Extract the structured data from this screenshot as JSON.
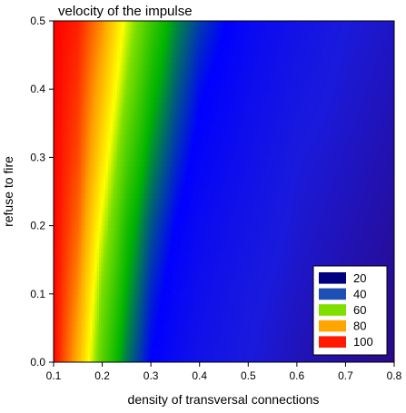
{
  "chart_data": {
    "type": "heatmap",
    "title": "velocity of the impulse",
    "xlabel": "density of transversal connections",
    "ylabel": "refuse to fire",
    "xlim": [
      0.1,
      0.8
    ],
    "ylim": [
      0.0,
      0.5
    ],
    "xticks": [
      "0.1",
      "0.2",
      "0.3",
      "0.4",
      "0.5",
      "0.6",
      "0.7",
      "0.8"
    ],
    "yticks": [
      "0.0",
      "0.1",
      "0.2",
      "0.3",
      "0.4",
      "0.5"
    ],
    "x": [
      0.1,
      0.15,
      0.2,
      0.25,
      0.3,
      0.35,
      0.4,
      0.5,
      0.6,
      0.7,
      0.8
    ],
    "y": [
      0.0,
      0.1,
      0.2,
      0.3,
      0.4,
      0.5
    ],
    "z": [
      [
        100,
        82,
        60,
        45,
        35,
        30,
        26,
        22,
        19,
        17,
        15
      ],
      [
        100,
        86,
        64,
        49,
        38,
        32,
        28,
        23,
        20,
        18,
        16
      ],
      [
        100,
        90,
        70,
        53,
        42,
        35,
        30,
        25,
        21,
        19,
        17
      ],
      [
        100,
        93,
        76,
        59,
        47,
        39,
        33,
        27,
        22,
        20,
        18
      ],
      [
        100,
        95,
        81,
        65,
        52,
        43,
        36,
        29,
        24,
        21,
        19
      ],
      [
        100,
        97,
        86,
        70,
        57,
        47,
        40,
        31,
        26,
        22,
        20
      ]
    ],
    "legend": {
      "position": "bottom-right",
      "entries": [
        {
          "label": "20",
          "color": "#00007F"
        },
        {
          "label": "40",
          "color": "#1E4FB4"
        },
        {
          "label": "60",
          "color": "#7FE000"
        },
        {
          "label": "80",
          "color": "#FFA500"
        },
        {
          "label": "100",
          "color": "#FF1A00"
        }
      ]
    },
    "colorscale": [
      {
        "v": 15,
        "color": "#2A0A88"
      },
      {
        "v": 22,
        "color": "#1A1ADD"
      },
      {
        "v": 35,
        "color": "#0000FF"
      },
      {
        "v": 50,
        "color": "#00B400"
      },
      {
        "v": 65,
        "color": "#80E000"
      },
      {
        "v": 72,
        "color": "#FFFF00"
      },
      {
        "v": 84,
        "color": "#FFA500"
      },
      {
        "v": 100,
        "color": "#FF0000"
      }
    ],
    "grid": false
  }
}
